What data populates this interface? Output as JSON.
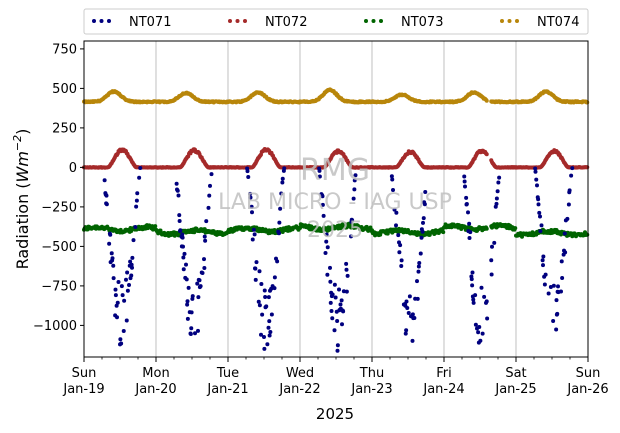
{
  "chart_data": {
    "type": "scatter",
    "xlabel": "2025",
    "ylabel": "Radiation (Wm⁻²)",
    "ylim": [
      -1200,
      800
    ],
    "yticks": [
      750,
      500,
      250,
      0,
      -250,
      -500,
      -750,
      -1000
    ],
    "ytick_labels": [
      "750",
      "500",
      "250",
      "0",
      "−250",
      "−500",
      "−750",
      "−1000"
    ],
    "xlim_days": [
      0,
      7
    ],
    "xticks": [
      {
        "day": "Sun",
        "date": "Jan-19"
      },
      {
        "day": "Mon",
        "date": "Jan-20"
      },
      {
        "day": "Tue",
        "date": "Jan-21"
      },
      {
        "day": "Wed",
        "date": "Jan-22"
      },
      {
        "day": "Thu",
        "date": "Jan-23"
      },
      {
        "day": "Fri",
        "date": "Jan-24"
      },
      {
        "day": "Sat",
        "date": "Jan-25"
      },
      {
        "day": "Sun",
        "date": "Jan-26"
      }
    ],
    "grid": "vertical",
    "legend_position": "top",
    "watermark": [
      "RMG",
      "LAB MICRO - IAG USP",
      "2025"
    ],
    "series": [
      {
        "name": "NT071",
        "color": "#00007f",
        "day_profile": {
          "night": 0,
          "sunrise_hour": 6.3,
          "sunset_hour": 18.8,
          "amplitude": [
            -1150,
            -1160,
            -1170,
            -1180,
            -1160,
            -1170,
            -1130
          ],
          "scatter": 0.35
        }
      },
      {
        "name": "NT072",
        "color": "#a52a2a",
        "day_profile": {
          "night": 0,
          "sunrise_hour": 8.0,
          "sunset_hour": 17.5,
          "amplitude": [
            120,
            115,
            120,
            110,
            105,
            115,
            110
          ],
          "scatter": 0.15
        }
      },
      {
        "name": "NT073",
        "color": "#006400",
        "day_profile": {
          "base": -400,
          "variation": 40,
          "daily_values": [
            -390,
            -410,
            -395,
            -380,
            -410,
            -380,
            -415
          ]
        }
      },
      {
        "name": "NT074",
        "color": "#b8860b",
        "day_profile": {
          "base": 415,
          "peak": [
            480,
            470,
            475,
            490,
            460,
            475,
            480
          ],
          "peak_hour": 10
        }
      }
    ],
    "gap_days": [
      [
        5.6,
        5.65
      ]
    ]
  }
}
